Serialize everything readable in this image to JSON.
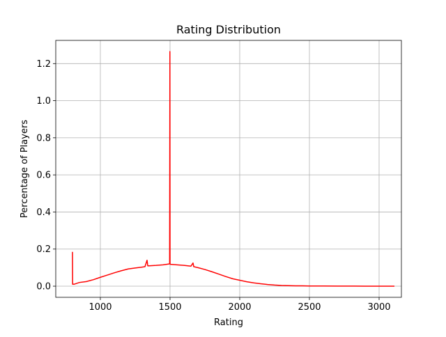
{
  "chart_data": {
    "type": "line",
    "title": "Rating Distribution",
    "xlabel": "Rating",
    "ylabel": "Percentage of Players",
    "xlim": [
      680,
      3160
    ],
    "ylim": [
      -0.06,
      1.325
    ],
    "xticks": [
      1000,
      1500,
      2000,
      2500,
      3000
    ],
    "yticks": [
      0.0,
      0.2,
      0.4,
      0.6,
      0.8,
      1.0,
      1.2
    ],
    "xtick_labels": [
      "1000",
      "1500",
      "2000",
      "2500",
      "3000"
    ],
    "ytick_labels": [
      "0.0",
      "0.2",
      "0.4",
      "0.6",
      "0.8",
      "1.0",
      "1.2"
    ],
    "grid": true,
    "series": [
      {
        "color": "#ff0000",
        "x": [
          800,
          801,
          803,
          810,
          850,
          900,
          950,
          1000,
          1050,
          1100,
          1150,
          1200,
          1250,
          1300,
          1320,
          1335,
          1340,
          1350,
          1400,
          1450,
          1497,
          1499,
          1500,
          1501,
          1503,
          1550,
          1600,
          1650,
          1665,
          1670,
          1700,
          1750,
          1800,
          1850,
          1900,
          1950,
          2000,
          2050,
          2100,
          2150,
          2200,
          2250,
          2300,
          2350,
          2400,
          2450,
          2500,
          2600,
          2700,
          2800,
          2900,
          3000,
          3110
        ],
        "y": [
          0.185,
          0.01,
          0.012,
          0.01,
          0.02,
          0.025,
          0.035,
          0.048,
          0.06,
          0.072,
          0.083,
          0.093,
          0.098,
          0.103,
          0.105,
          0.14,
          0.11,
          0.11,
          0.112,
          0.115,
          0.12,
          1.265,
          0.12,
          0.12,
          0.118,
          0.115,
          0.112,
          0.108,
          0.125,
          0.105,
          0.1,
          0.09,
          0.078,
          0.065,
          0.052,
          0.04,
          0.032,
          0.024,
          0.018,
          0.013,
          0.009,
          0.006,
          0.004,
          0.003,
          0.002,
          0.002,
          0.001,
          0.001,
          0.0005,
          0.0003,
          0.0002,
          0.0001,
          0.0
        ]
      }
    ]
  }
}
